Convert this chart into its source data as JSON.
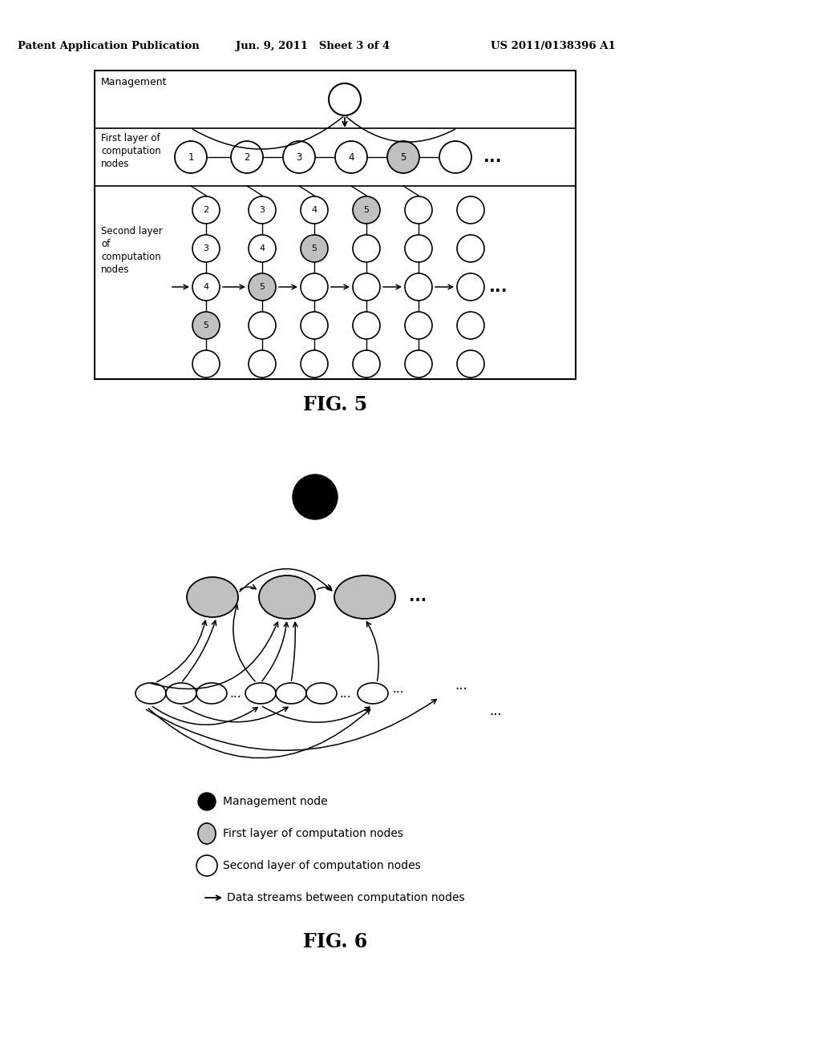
{
  "title_line1": "Patent Application Publication",
  "title_line2": "Jun. 9, 2011   Sheet 3 of 4",
  "title_line3": "US 2011/0138396 A1",
  "fig5_label": "FIG. 5",
  "fig6_label": "FIG. 6",
  "management_label": "Management",
  "first_layer_label": "First layer of\ncomputation\nnodes",
  "second_layer_label": "Second layer\nof\ncomputation\nnodes",
  "legend_management": "Management node",
  "legend_first": "First layer of computation nodes",
  "legend_second": "Second layer of computation nodes",
  "legend_arrow": "Data streams between computation nodes",
  "bg_color": "#ffffff",
  "gray_fill": "#c0c0c0",
  "white_fill": "#ffffff"
}
